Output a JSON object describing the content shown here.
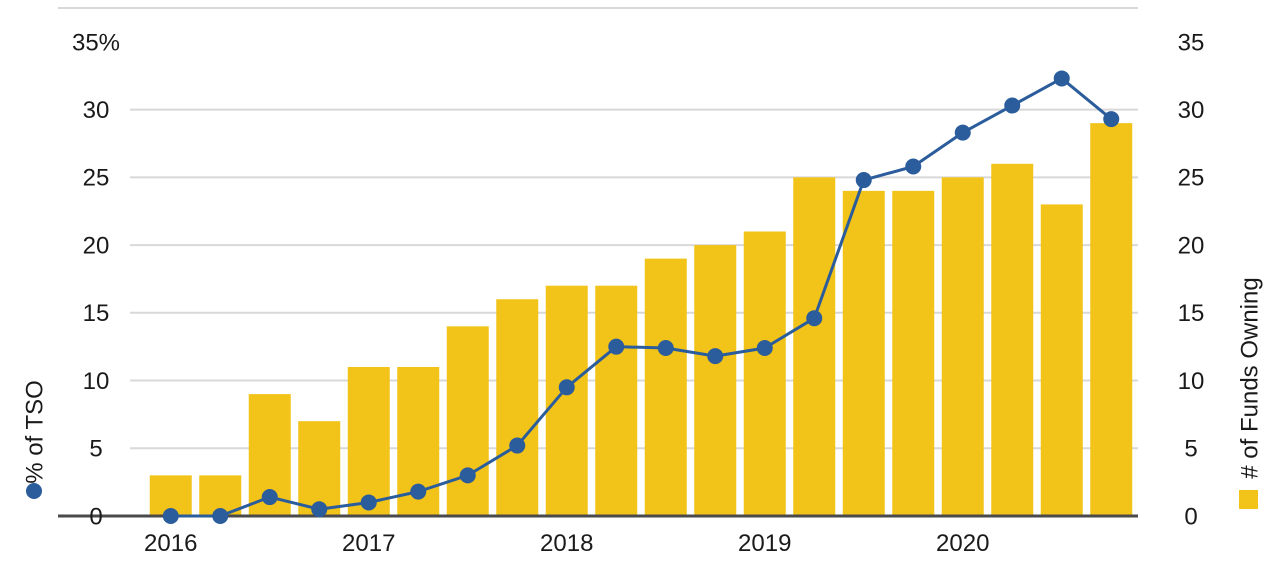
{
  "chart_data": {
    "type": "combo",
    "x": [
      "2016 Q1",
      "2016 Q2",
      "2016 Q3",
      "2016 Q4",
      "2017 Q1",
      "2017 Q2",
      "2017 Q3",
      "2017 Q4",
      "2018 Q1",
      "2018 Q2",
      "2018 Q3",
      "2018 Q4",
      "2019 Q1",
      "2019 Q2",
      "2019 Q3",
      "2019 Q4",
      "2020 Q1",
      "2020 Q2",
      "2020 Q3",
      "2020 Q4"
    ],
    "x_tick_labels": [
      {
        "label": "2016",
        "index": 0
      },
      {
        "label": "2017",
        "index": 4
      },
      {
        "label": "2018",
        "index": 8
      },
      {
        "label": "2019",
        "index": 12
      },
      {
        "label": "2020",
        "index": 16
      }
    ],
    "series": [
      {
        "name": "# of Funds Owning",
        "type": "bar",
        "axis": "right",
        "color": "#F2C318",
        "values": [
          3,
          3,
          9,
          7,
          11,
          11,
          14,
          16,
          17,
          17,
          19,
          20,
          21,
          25,
          24,
          24,
          25,
          26,
          23,
          29
        ]
      },
      {
        "name": "% of TSO",
        "type": "line",
        "axis": "left",
        "color": "#2B5C9C",
        "values": [
          0,
          0,
          1.4,
          0.5,
          1.0,
          1.8,
          3.0,
          5.2,
          9.5,
          12.5,
          12.4,
          11.8,
          12.4,
          14.6,
          24.8,
          25.8,
          28.3,
          30.3,
          32.3,
          29.3
        ]
      }
    ],
    "left_axis": {
      "title": "% of TSO",
      "tick_labels": [
        "35%",
        "30",
        "25",
        "20",
        "15",
        "10",
        "5",
        "0"
      ],
      "tick_values": [
        35,
        30,
        25,
        20,
        15,
        10,
        5,
        0
      ],
      "range": [
        0,
        35
      ]
    },
    "right_axis": {
      "title": "# of Funds Owning",
      "tick_labels": [
        "35",
        "30",
        "25",
        "20",
        "15",
        "10",
        "5",
        "0"
      ],
      "tick_values": [
        35,
        30,
        25,
        20,
        15,
        10,
        5,
        0
      ],
      "range": [
        0,
        35
      ]
    },
    "grid": true,
    "legend": [
      {
        "label": "% of TSO",
        "marker": "dot",
        "color": "#2B5C9C"
      },
      {
        "label": "# of Funds Owning",
        "marker": "square",
        "color": "#F2C318"
      }
    ],
    "colors": {
      "grid": "#D8D8D8",
      "axis_line": "#4A4A4A",
      "text": "#1A1A1A",
      "background": "#FFFFFF"
    }
  }
}
